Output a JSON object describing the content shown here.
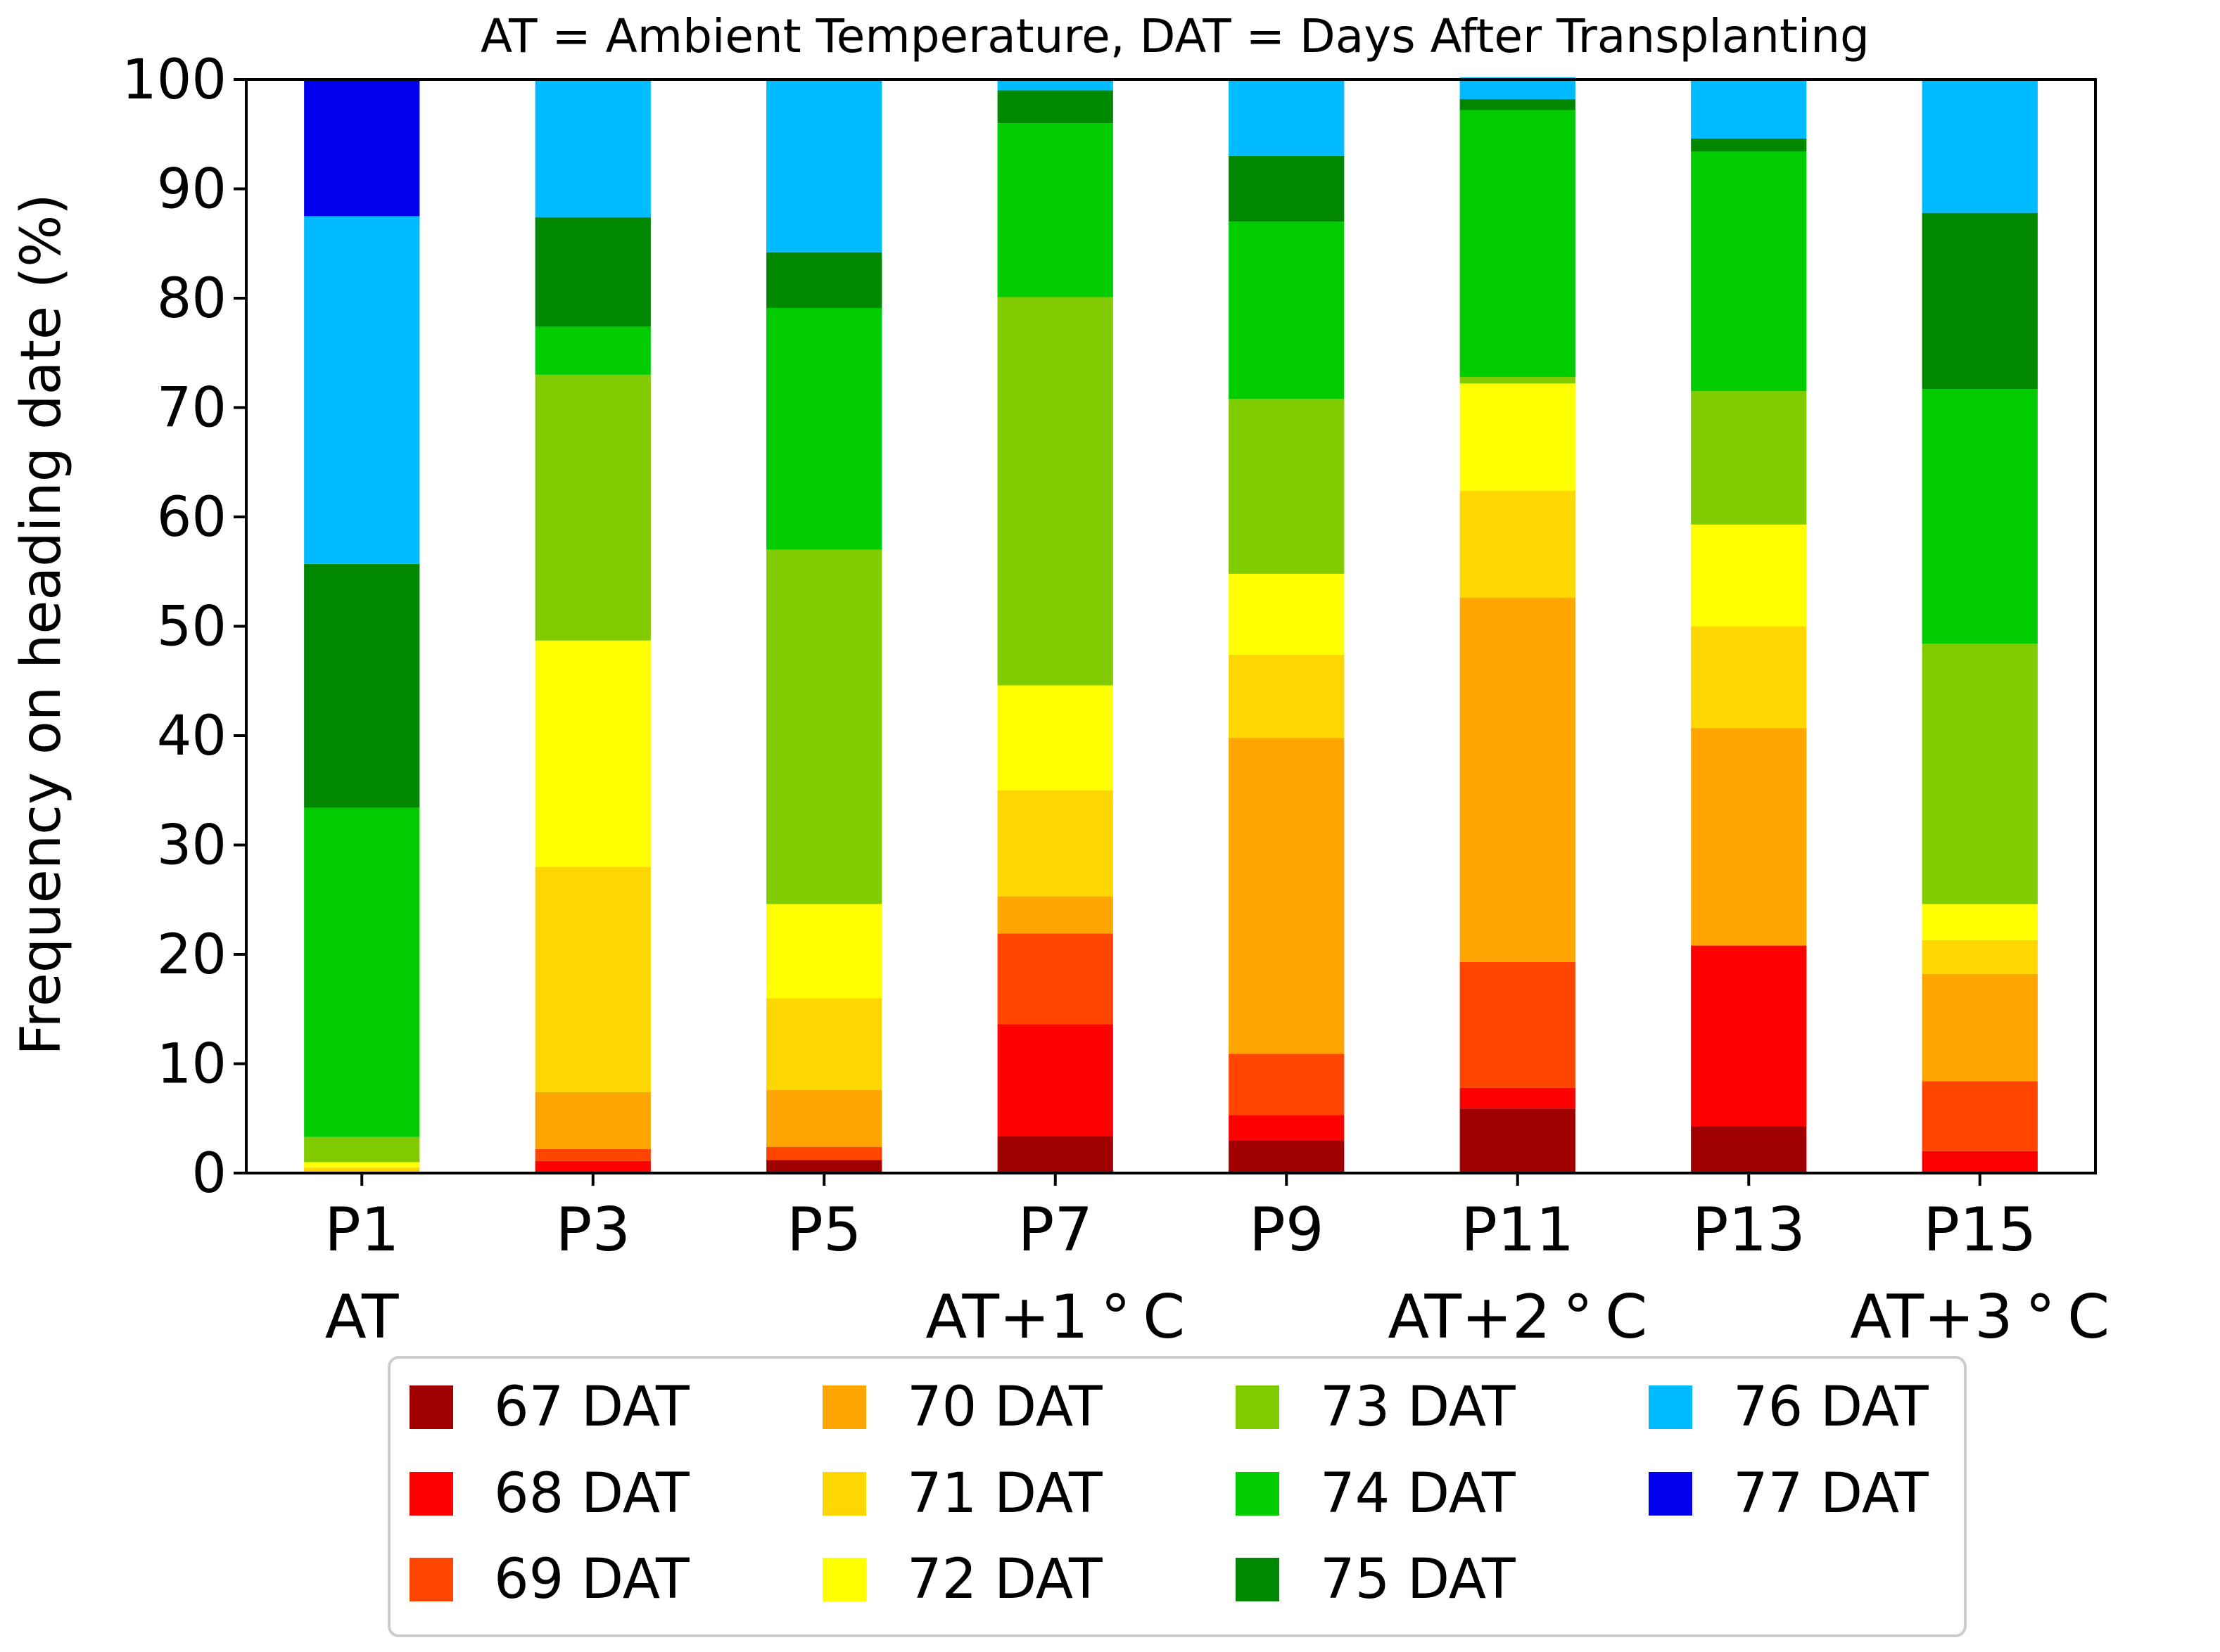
{
  "chart_data": {
    "type": "bar",
    "stacked": true,
    "title": "AT = Ambient Temperature, DAT = Days After Transplanting",
    "xlabel": "",
    "ylabel": "Frequency on heading date (%)",
    "ylim": [
      0,
      100
    ],
    "yticks": [
      0,
      10,
      20,
      30,
      40,
      50,
      60,
      70,
      80,
      90,
      100
    ],
    "grid": false,
    "legend_position": "bottom",
    "categories": [
      "P1",
      "P3",
      "P5",
      "P7",
      "P9",
      "P11",
      "P13",
      "P15"
    ],
    "group_labels": [
      "AT",
      "",
      "",
      "AT+1 ° C",
      "",
      "AT+2 ° C",
      "",
      "AT+3 ° C"
    ],
    "series": [
      {
        "name": "67 DAT",
        "color": "#a00000",
        "values": [
          0,
          0,
          1.2,
          3.4,
          3.0,
          5.9,
          4.3,
          0
        ]
      },
      {
        "name": "68 DAT",
        "color": "#ff0000",
        "values": [
          0,
          1.1,
          0,
          10.2,
          2.3,
          1.9,
          16.5,
          2.0
        ]
      },
      {
        "name": "69 DAT",
        "color": "#ff4500",
        "values": [
          0,
          1.1,
          1.2,
          8.3,
          5.6,
          11.5,
          0,
          6.4
        ]
      },
      {
        "name": "70 DAT",
        "color": "#ffa500",
        "values": [
          0,
          5.2,
          5.2,
          3.4,
          28.9,
          33.3,
          19.9,
          9.8
        ]
      },
      {
        "name": "71 DAT",
        "color": "#ffd700",
        "values": [
          0.5,
          20.6,
          8.4,
          9.7,
          7.6,
          9.8,
          9.3,
          3.1
        ]
      },
      {
        "name": "72 DAT",
        "color": "#ffff00",
        "values": [
          0.5,
          20.7,
          8.6,
          9.6,
          7.4,
          9.8,
          9.3,
          3.3
        ]
      },
      {
        "name": "73 DAT",
        "color": "#80cc00",
        "values": [
          2.3,
          24.3,
          32.4,
          35.5,
          16.0,
          0.6,
          12.2,
          23.8
        ]
      },
      {
        "name": "74 DAT",
        "color": "#00cc00",
        "values": [
          30.1,
          4.4,
          22.1,
          15.9,
          16.2,
          24.4,
          21.9,
          23.3
        ]
      },
      {
        "name": "75 DAT",
        "color": "#008800",
        "values": [
          22.3,
          10.0,
          5.1,
          3.0,
          6.0,
          1.0,
          1.2,
          16.1
        ]
      },
      {
        "name": "76 DAT",
        "color": "#00bbff",
        "values": [
          31.8,
          12.6,
          15.8,
          1.0,
          7.0,
          2.0,
          5.4,
          12.2
        ]
      },
      {
        "name": "77 DAT",
        "color": "#0000ee",
        "values": [
          12.5,
          0,
          0,
          0,
          0,
          0,
          0,
          0
        ]
      }
    ]
  }
}
